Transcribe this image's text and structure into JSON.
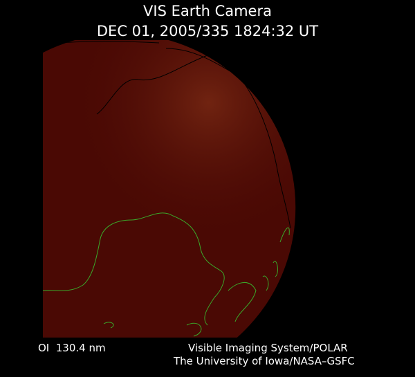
{
  "header": {
    "title": "VIS Earth Camera",
    "subtitle": "DEC 01, 2005/335 1824:32 UT"
  },
  "footer": {
    "filter": "OI  130.4 nm",
    "credit_line1": "Visible Imaging System/POLAR",
    "credit_line2": "The University of Iowa/NASA–GSFC"
  }
}
